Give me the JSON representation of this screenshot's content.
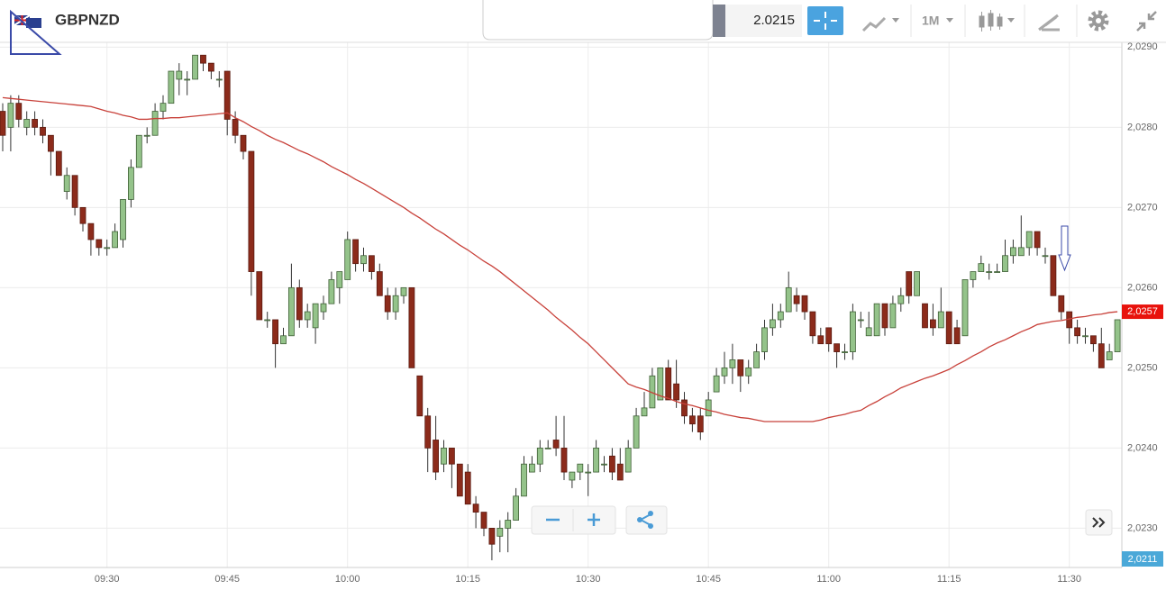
{
  "toolbar": {
    "price": "2.0215",
    "timeframe": "1M"
  },
  "chart_data": {
    "type": "candlestick",
    "title": "GBPNZD",
    "categories": [
      null,
      null,
      null,
      null,
      null,
      null,
      null,
      null,
      null,
      null,
      null,
      null,
      null,
      "09:30",
      null,
      null,
      null,
      null,
      null,
      null,
      null,
      null,
      null,
      null,
      null,
      null,
      null,
      null,
      "09:45",
      null,
      null,
      null,
      null,
      null,
      null,
      null,
      null,
      null,
      null,
      null,
      null,
      null,
      null,
      "10:00",
      null,
      null,
      null,
      null,
      null,
      null,
      null,
      null,
      null,
      null,
      null,
      null,
      null,
      null,
      "10:15",
      null,
      null,
      null,
      null,
      null,
      null,
      null,
      null,
      null,
      null,
      null,
      null,
      null,
      null,
      "10:30",
      null,
      null,
      null,
      null,
      null,
      null,
      null,
      null,
      null,
      null,
      null,
      null,
      null,
      null,
      "10:45",
      null,
      null,
      null,
      null,
      null,
      null,
      null,
      null,
      null,
      null,
      null,
      null,
      null,
      null,
      "11:00",
      null,
      null,
      null,
      null,
      null,
      null,
      null,
      null,
      null,
      null,
      null,
      null,
      null,
      null,
      "11:15",
      null,
      null,
      null,
      null,
      null,
      null,
      null,
      null,
      null,
      null,
      null,
      null,
      null,
      null,
      "11:30",
      null,
      null,
      null,
      null,
      null,
      null
    ],
    "open": [
      2.0282,
      2.028,
      2.0283,
      2.028,
      2.0281,
      2.028,
      2.0279,
      2.0277,
      2.0272,
      2.0274,
      2.027,
      2.0268,
      2.0266,
      2.0265,
      2.0265,
      2.0266,
      2.0271,
      2.0275,
      2.0279,
      2.0279,
      2.0282,
      2.0283,
      2.0286,
      2.0286,
      2.0286,
      2.0289,
      2.0288,
      2.0286,
      2.0287,
      2.0281,
      2.0279,
      2.0277,
      2.0262,
      2.0256,
      2.0256,
      2.0253,
      2.0254,
      2.026,
      2.0256,
      2.0255,
      2.0257,
      2.0258,
      2.026,
      2.0261,
      2.0266,
      2.0263,
      2.0264,
      2.0262,
      2.0259,
      2.0257,
      2.0259,
      2.026,
      2.0249,
      2.0244,
      2.0241,
      2.0238,
      2.024,
      2.0238,
      2.0237,
      2.0233,
      2.0232,
      2.023,
      2.0229,
      2.023,
      2.0231,
      2.0234,
      2.0237,
      2.0238,
      2.024,
      2.0241,
      2.024,
      2.0236,
      2.0237,
      2.0237,
      2.0237,
      2.0238,
      2.0239,
      2.0238,
      2.0237,
      2.024,
      2.0244,
      2.0245,
      2.0246,
      2.025,
      2.0248,
      2.0246,
      2.0244,
      2.0244,
      2.0244,
      2.0247,
      2.0249,
      2.025,
      2.0251,
      2.0249,
      2.025,
      2.0252,
      2.0255,
      2.0256,
      2.0257,
      2.0259,
      2.0259,
      2.0257,
      2.0254,
      2.0255,
      2.0253,
      2.0252,
      2.0252,
      2.0256,
      2.0254,
      2.0254,
      2.0258,
      2.0255,
      2.0258,
      2.0262,
      2.0259,
      2.0258,
      2.0256,
      2.0255,
      2.0257,
      2.0255,
      2.0254,
      2.0261,
      2.0262,
      2.0262,
      2.0262,
      2.0262,
      2.0264,
      2.0264,
      2.0265,
      2.0267,
      2.0264,
      2.0264,
      2.0259,
      2.0257,
      2.0255,
      2.0254,
      2.0254,
      2.0253,
      2.0251,
      2.0252
    ],
    "high": [
      2.0283,
      2.0284,
      2.0284,
      2.0282,
      2.0282,
      2.0281,
      2.0279,
      2.0277,
      2.0275,
      2.0274,
      2.027,
      2.0268,
      2.0266,
      2.0266,
      2.0268,
      2.0271,
      2.0276,
      2.0279,
      2.028,
      2.0283,
      2.0284,
      2.0287,
      2.0288,
      2.0287,
      2.0289,
      2.0289,
      2.0288,
      2.0287,
      2.0287,
      2.0282,
      2.0279,
      2.0277,
      2.0262,
      2.0257,
      2.0256,
      2.0255,
      2.0263,
      2.0261,
      2.0258,
      2.0258,
      2.0259,
      2.0262,
      2.0262,
      2.0267,
      2.0266,
      2.0265,
      2.0264,
      2.0263,
      2.026,
      2.026,
      2.026,
      2.026,
      2.0249,
      2.0245,
      2.0244,
      2.0241,
      2.024,
      2.0238,
      2.0238,
      2.0234,
      2.0232,
      2.023,
      2.0231,
      2.0232,
      2.0235,
      2.0239,
      2.0239,
      2.0241,
      2.0241,
      2.0244,
      2.0244,
      2.0237,
      2.0238,
      2.0238,
      2.0241,
      2.0239,
      2.024,
      2.024,
      2.0241,
      2.0245,
      2.0247,
      2.025,
      2.025,
      2.0251,
      2.0251,
      2.0247,
      2.0245,
      2.0245,
      2.0247,
      2.025,
      2.0252,
      2.0253,
      2.0251,
      2.0251,
      2.0253,
      2.0256,
      2.0258,
      2.0258,
      2.0262,
      2.026,
      2.0259,
      2.0257,
      2.0255,
      2.0255,
      2.0253,
      2.0253,
      2.0258,
      2.0257,
      2.0257,
      2.0258,
      2.0258,
      2.0259,
      2.026,
      2.0262,
      2.0262,
      2.0258,
      2.0258,
      2.026,
      2.0257,
      2.0256,
      2.0261,
      2.0262,
      2.0264,
      2.0263,
      2.0263,
      2.0266,
      2.0266,
      2.0269,
      2.0267,
      2.0267,
      2.0265,
      2.0264,
      2.0259,
      2.0257,
      2.0256,
      2.0255,
      2.0254,
      2.0255,
      2.0253,
      2.0256
    ],
    "low": [
      2.0277,
      2.0277,
      2.028,
      2.0279,
      2.0279,
      2.0278,
      2.0274,
      2.0274,
      2.0271,
      2.0269,
      2.0267,
      2.0264,
      2.0264,
      2.0264,
      2.0265,
      2.0265,
      2.027,
      2.0275,
      2.0278,
      2.0279,
      2.0281,
      2.0283,
      2.0284,
      2.0284,
      2.0286,
      2.0287,
      2.0286,
      2.0285,
      2.0279,
      2.0278,
      2.0276,
      2.0259,
      2.0256,
      2.0255,
      2.025,
      2.0253,
      2.0254,
      2.0255,
      2.0255,
      2.0253,
      2.0256,
      2.0258,
      2.0258,
      2.0261,
      2.0262,
      2.0262,
      2.0261,
      2.0259,
      2.0256,
      2.0256,
      2.0258,
      2.025,
      2.0244,
      2.0237,
      2.0236,
      2.0237,
      2.0235,
      2.0234,
      2.0233,
      2.023,
      2.0229,
      2.0226,
      2.0227,
      2.0227,
      2.0231,
      2.0234,
      2.0237,
      2.0237,
      2.024,
      2.0239,
      2.0236,
      2.0235,
      2.0236,
      2.0234,
      2.0237,
      2.0237,
      2.0236,
      2.0236,
      2.0237,
      2.024,
      2.0244,
      2.0245,
      2.0246,
      2.0246,
      2.0245,
      2.0243,
      2.0242,
      2.0241,
      2.0244,
      2.0247,
      2.0248,
      2.0248,
      2.0247,
      2.0248,
      2.025,
      2.0251,
      2.0254,
      2.0255,
      2.0257,
      2.0257,
      2.0256,
      2.0253,
      2.0253,
      2.0252,
      2.025,
      2.0251,
      2.0251,
      2.0255,
      2.0254,
      2.0254,
      2.0254,
      2.0255,
      2.0257,
      2.0258,
      2.0259,
      2.0255,
      2.0254,
      2.0255,
      2.0253,
      2.0253,
      2.0254,
      2.026,
      2.0262,
      2.0261,
      2.0262,
      2.0262,
      2.0263,
      2.0264,
      2.0264,
      2.0264,
      2.0263,
      2.0259,
      2.0256,
      2.0253,
      2.0253,
      2.0253,
      2.0252,
      2.025,
      2.0251,
      2.0252
    ],
    "close": [
      2.0279,
      2.0283,
      2.0281,
      2.0281,
      2.028,
      2.0279,
      2.0277,
      2.0274,
      2.0274,
      2.027,
      2.0268,
      2.0266,
      2.0265,
      2.0265,
      2.0267,
      2.0271,
      2.0275,
      2.0279,
      2.0279,
      2.0282,
      2.0283,
      2.0287,
      2.0287,
      2.0286,
      2.0289,
      2.0288,
      2.0287,
      2.0286,
      2.0281,
      2.0279,
      2.0277,
      2.0262,
      2.0256,
      2.0256,
      2.0253,
      2.0254,
      2.026,
      2.0256,
      2.0257,
      2.0258,
      2.0258,
      2.0261,
      2.0262,
      2.0266,
      2.0263,
      2.0264,
      2.0262,
      2.0259,
      2.0257,
      2.0259,
      2.026,
      2.025,
      2.0244,
      2.024,
      2.0237,
      2.024,
      2.0238,
      2.0234,
      2.0233,
      2.0232,
      2.023,
      2.0228,
      2.023,
      2.0231,
      2.0234,
      2.0238,
      2.0238,
      2.024,
      2.024,
      2.024,
      2.0237,
      2.0237,
      2.0238,
      2.0237,
      2.024,
      2.0238,
      2.0237,
      2.0236,
      2.024,
      2.0244,
      2.0245,
      2.0249,
      2.025,
      2.0246,
      2.0246,
      2.0244,
      2.0243,
      2.0242,
      2.0246,
      2.0249,
      2.025,
      2.0251,
      2.0249,
      2.025,
      2.0252,
      2.0255,
      2.0256,
      2.0257,
      2.026,
      2.0258,
      2.0257,
      2.0254,
      2.0253,
      2.0253,
      2.0252,
      2.0252,
      2.0257,
      2.0256,
      2.0255,
      2.0258,
      2.0255,
      2.0258,
      2.0259,
      2.0259,
      2.0262,
      2.0255,
      2.0255,
      2.0257,
      2.0253,
      2.0253,
      2.0261,
      2.0262,
      2.0263,
      2.0262,
      2.0262,
      2.0264,
      2.0265,
      2.0265,
      2.0267,
      2.0265,
      2.0264,
      2.0259,
      2.0257,
      2.0255,
      2.0254,
      2.0254,
      2.0253,
      2.025,
      2.0252,
      2.0256
    ],
    "up_color": "#94c38a",
    "down_color": "#8c2b1b",
    "moving_average": {
      "color": "#c8413a",
      "values": [
        2.02837,
        2.02836,
        2.02835,
        2.02834,
        2.02833,
        2.02832,
        2.02831,
        2.0283,
        2.02829,
        2.02828,
        2.02827,
        2.02826,
        2.02823,
        2.0282,
        2.02818,
        2.02815,
        2.02813,
        2.0281,
        2.0281,
        2.02811,
        2.02811,
        2.02812,
        2.02812,
        2.02813,
        2.02814,
        2.02815,
        2.02816,
        2.02817,
        2.02818,
        2.02812,
        2.02807,
        2.02801,
        2.02796,
        2.0279,
        2.02785,
        2.02781,
        2.02776,
        2.02771,
        2.02767,
        2.02762,
        2.02757,
        2.02751,
        2.02746,
        2.02741,
        2.02735,
        2.0273,
        2.02724,
        2.02718,
        2.02712,
        2.02706,
        2.027,
        2.02693,
        2.02687,
        2.0268,
        2.02673,
        2.02667,
        2.0266,
        2.02653,
        2.02647,
        2.0264,
        2.02633,
        2.02627,
        2.0262,
        2.02612,
        2.02604,
        2.02596,
        2.02588,
        2.0258,
        2.02572,
        2.02563,
        2.02555,
        2.02547,
        2.02538,
        2.0253,
        2.0252,
        2.0251,
        2.025,
        2.0249,
        2.0248,
        2.02476,
        2.02473,
        2.02469,
        2.02465,
        2.02462,
        2.02458,
        2.02455,
        2.02453,
        2.0245,
        2.02447,
        2.02445,
        2.02442,
        2.0244,
        2.02438,
        2.02437,
        2.02435,
        2.02433,
        2.02433,
        2.02433,
        2.02433,
        2.02433,
        2.02433,
        2.02433,
        2.02435,
        2.02438,
        2.0244,
        2.02442,
        2.02445,
        2.02447,
        2.02453,
        2.02458,
        2.02464,
        2.02469,
        2.02475,
        2.02479,
        2.02483,
        2.02487,
        2.0249,
        2.02494,
        2.02498,
        2.02504,
        2.02509,
        2.02515,
        2.0252,
        2.02526,
        2.02531,
        2.02535,
        2.0254,
        2.02545,
        2.02549,
        2.02554,
        2.02556,
        2.02558,
        2.02559,
        2.02561,
        2.02563,
        2.02564,
        2.02566,
        2.02567,
        2.02569,
        2.0257
      ]
    },
    "ylim": [
      2.02251,
      2.02906
    ],
    "yticks": [
      {
        "value": 2.023,
        "label": "2,0230"
      },
      {
        "value": 2.024,
        "label": "2,0240"
      },
      {
        "value": 2.025,
        "label": "2,0250"
      },
      {
        "value": 2.026,
        "label": "2,0260"
      },
      {
        "value": 2.027,
        "label": "2,0270"
      },
      {
        "value": 2.028,
        "label": "2,0280"
      },
      {
        "value": 2.029,
        "label": "2,0290"
      }
    ],
    "grid": true,
    "current_price": {
      "value": 2.0257,
      "label": "2,0257",
      "color": "#e8120c"
    },
    "bottom_price_label": "2,0211"
  }
}
